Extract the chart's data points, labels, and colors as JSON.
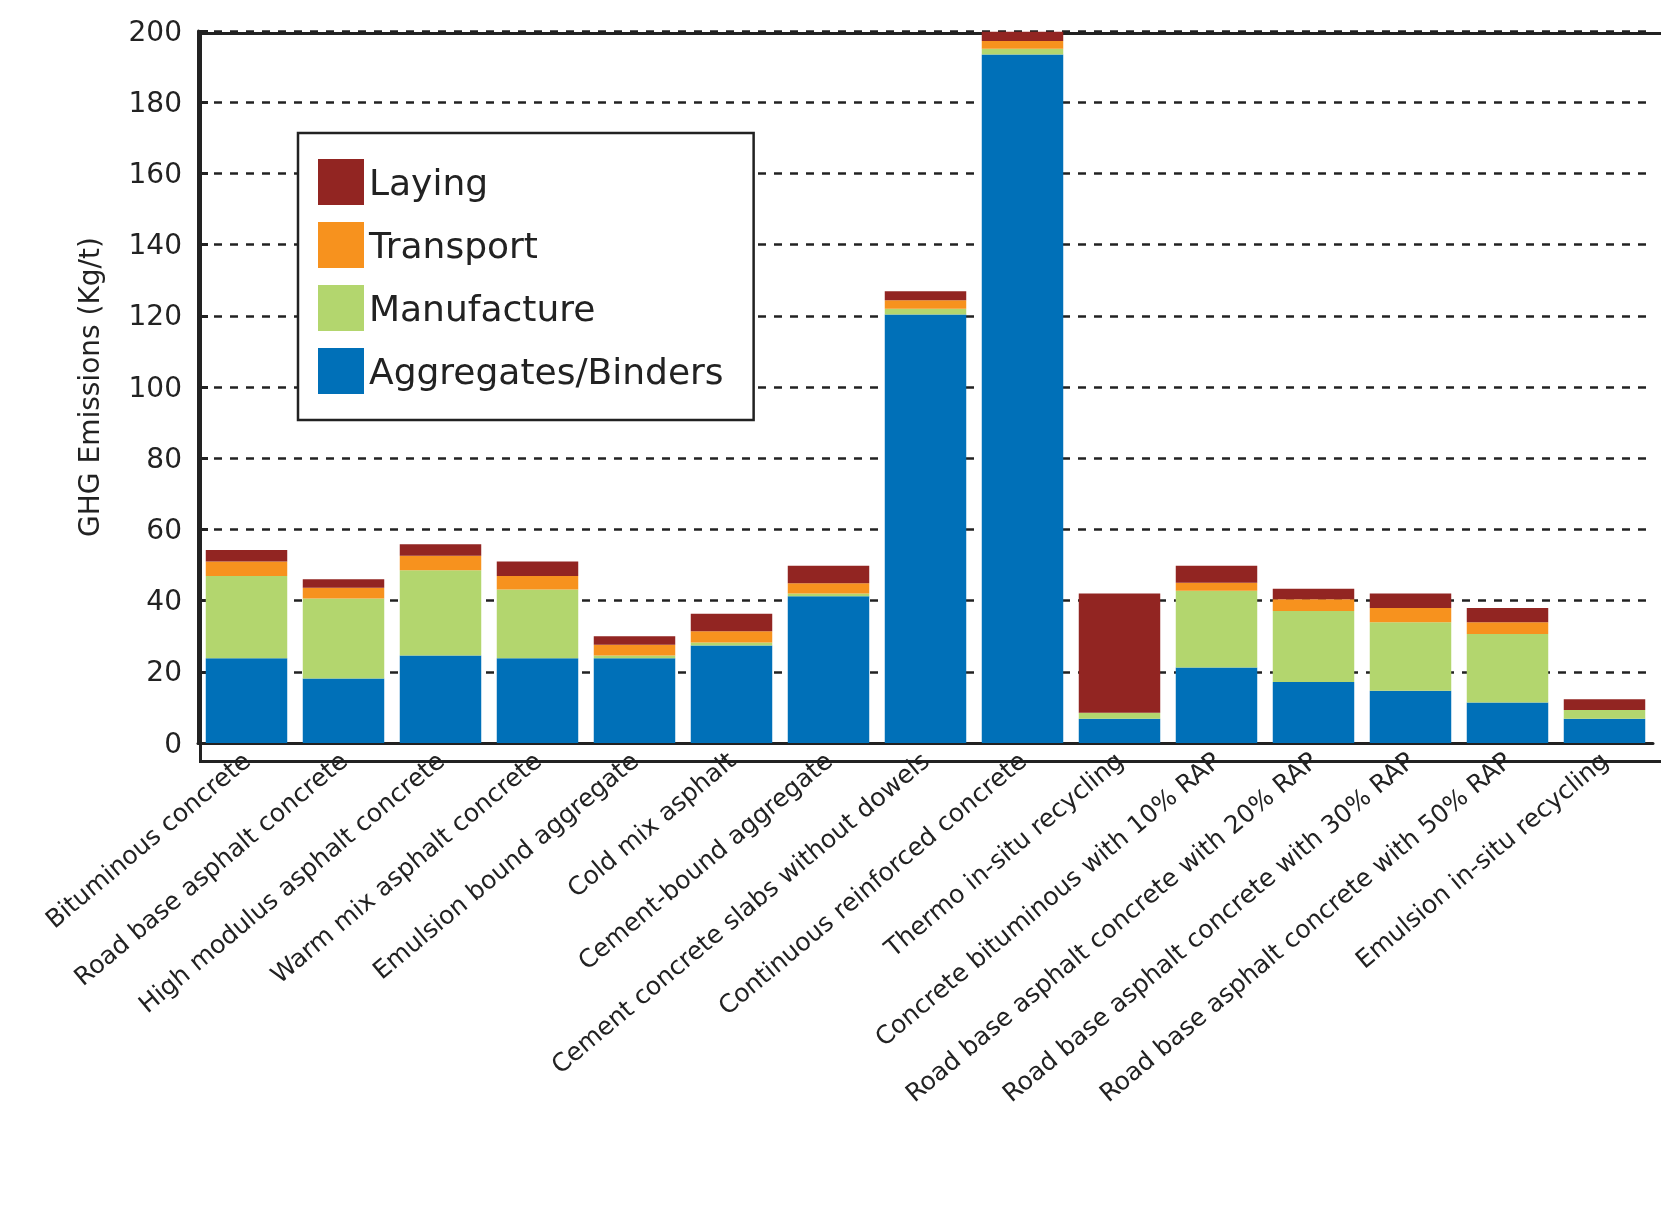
{
  "chart_data": {
    "type": "bar",
    "stacked": true,
    "ylabel": "GHG Emissions (Kg/t)",
    "categories": [
      "Bituminous concrete",
      "Road base asphalt concrete",
      "High modulus asphalt concrete",
      "Warm mix asphalt concrete",
      "Emulsion bound aggregate",
      "Cold mix asphalt",
      "Cement-bound aggregate",
      "Cement concrete slabs without dowels",
      "Continuous reinforced concrete",
      "Thermo in-situ recycling",
      "Concrete bituminous with 10% RAP",
      "Road base asphalt concrete with 20% RAP",
      "Road base asphalt concrete with 30% RAP",
      "Road base asphalt concrete with 50% RAP",
      "Emulsion in-situ recycling"
    ],
    "series": [
      {
        "name": "Aggregates/Binders",
        "color": "#0070b8",
        "values": [
          23.8,
          18.1,
          24.6,
          23.8,
          23.8,
          27.4,
          41.2,
          120.4,
          193.4,
          6.8,
          21.2,
          17.1,
          14.7,
          11.4,
          6.8
        ]
      },
      {
        "name": "Manufacture",
        "color": "#b3d66e",
        "values": [
          23.1,
          22.5,
          23.9,
          19.3,
          0.8,
          0.8,
          0.8,
          1.6,
          1.6,
          1.7,
          21.6,
          20,
          19.2,
          19.2,
          2.5
        ]
      },
      {
        "name": "Transport",
        "color": "#f7921e",
        "values": [
          4.1,
          3,
          4.1,
          3.8,
          3,
          3.2,
          2.9,
          2.4,
          2.2,
          0,
          2.2,
          3.3,
          4,
          3.3,
          0
        ]
      },
      {
        "name": "Laying",
        "color": "#922522",
        "values": [
          3.2,
          2.4,
          3.2,
          4.1,
          2.4,
          4.9,
          4.9,
          2.5,
          2.6,
          33.5,
          4.8,
          2.9,
          4.1,
          4,
          3
        ]
      }
    ],
    "ylim": [
      0,
      200
    ],
    "yticks": [
      0,
      20,
      40,
      60,
      80,
      100,
      120,
      140,
      160,
      180,
      200
    ],
    "grid": "y",
    "legend": "top left"
  }
}
